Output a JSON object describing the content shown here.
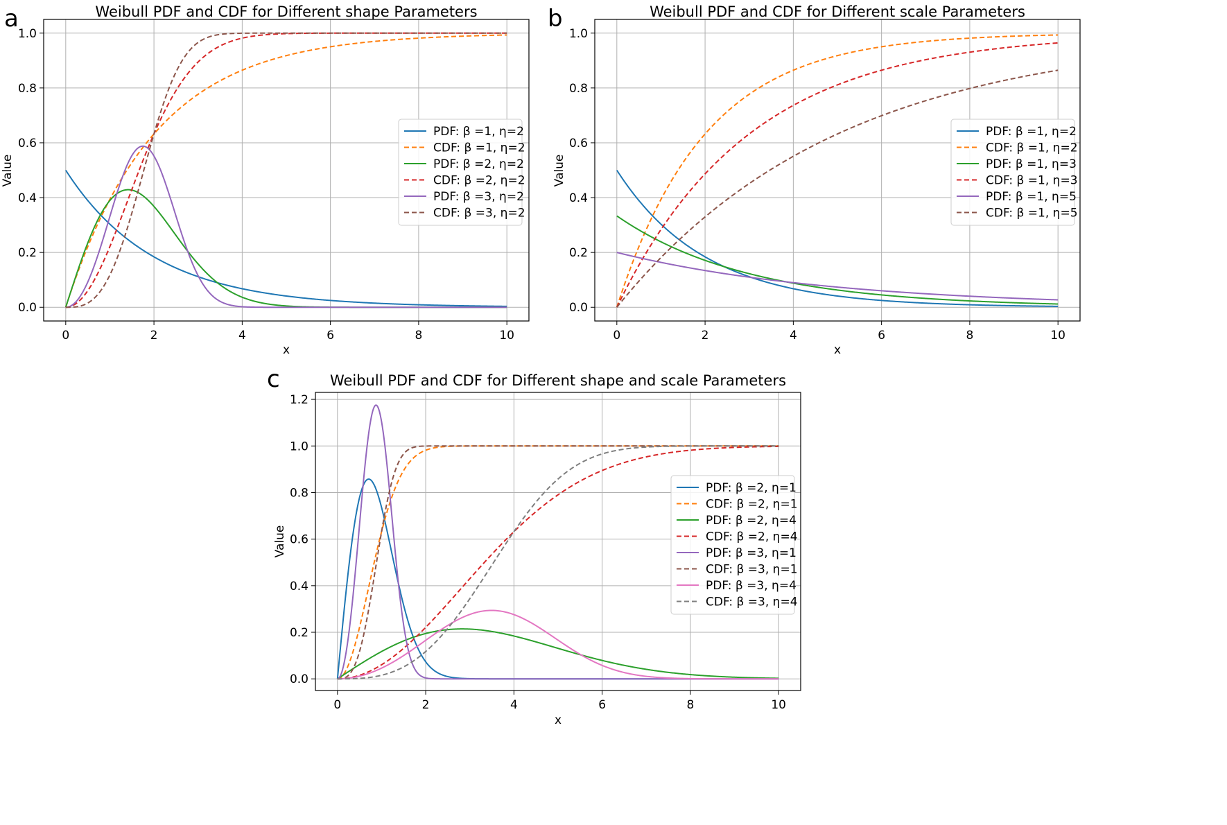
{
  "chart_data": [
    {
      "type": "line",
      "panel": "a",
      "title": "Weibull PDF and CDF for Different shape Parameters",
      "xlabel": "x",
      "ylabel": "Value",
      "xlim": [
        -0.5,
        10.5
      ],
      "ylim": [
        -0.05,
        1.05
      ],
      "xticks": [
        0,
        2,
        4,
        6,
        8,
        10
      ],
      "yticks": [
        0.0,
        0.2,
        0.4,
        0.6,
        0.8,
        1.0
      ],
      "grid": true,
      "legend_placement": "center-right",
      "series": [
        {
          "name": "PDF: β =1, η=2",
          "kind": "pdf",
          "beta": 1,
          "eta": 2,
          "color": "#1f77b4",
          "style": "solid"
        },
        {
          "name": "CDF: β =1, η=2",
          "kind": "cdf",
          "beta": 1,
          "eta": 2,
          "color": "#ff7f0e",
          "style": "dashed"
        },
        {
          "name": "PDF: β =2, η=2",
          "kind": "pdf",
          "beta": 2,
          "eta": 2,
          "color": "#2ca02c",
          "style": "solid"
        },
        {
          "name": "CDF: β =2, η=2",
          "kind": "cdf",
          "beta": 2,
          "eta": 2,
          "color": "#d62728",
          "style": "dashed"
        },
        {
          "name": "PDF: β =3, η=2",
          "kind": "pdf",
          "beta": 3,
          "eta": 2,
          "color": "#9467bd",
          "style": "solid"
        },
        {
          "name": "CDF: β =3, η=2",
          "kind": "cdf",
          "beta": 3,
          "eta": 2,
          "color": "#8c564b",
          "style": "dashed"
        }
      ]
    },
    {
      "type": "line",
      "panel": "b",
      "title": "Weibull PDF and CDF for Different scale Parameters",
      "xlabel": "x",
      "ylabel": "Value",
      "xlim": [
        -0.5,
        10.5
      ],
      "ylim": [
        -0.05,
        1.05
      ],
      "xticks": [
        0,
        2,
        4,
        6,
        8,
        10
      ],
      "yticks": [
        0.0,
        0.2,
        0.4,
        0.6,
        0.8,
        1.0
      ],
      "grid": true,
      "legend_placement": "center-right",
      "series": [
        {
          "name": "PDF: β =1, η=2",
          "kind": "pdf",
          "beta": 1,
          "eta": 2,
          "color": "#1f77b4",
          "style": "solid"
        },
        {
          "name": "CDF: β =1, η=2",
          "kind": "cdf",
          "beta": 1,
          "eta": 2,
          "color": "#ff7f0e",
          "style": "dashed"
        },
        {
          "name": "PDF: β =1, η=3",
          "kind": "pdf",
          "beta": 1,
          "eta": 3,
          "color": "#2ca02c",
          "style": "solid"
        },
        {
          "name": "CDF: β =1, η=3",
          "kind": "cdf",
          "beta": 1,
          "eta": 3,
          "color": "#d62728",
          "style": "dashed"
        },
        {
          "name": "PDF: β =1, η=5",
          "kind": "pdf",
          "beta": 1,
          "eta": 5,
          "color": "#9467bd",
          "style": "solid"
        },
        {
          "name": "CDF: β =1, η=5",
          "kind": "cdf",
          "beta": 1,
          "eta": 5,
          "color": "#8c564b",
          "style": "dashed"
        }
      ]
    },
    {
      "type": "line",
      "panel": "c",
      "title": "Weibull PDF and CDF for Different shape and scale Parameters",
      "xlabel": "x",
      "ylabel": "Value",
      "xlim": [
        -0.5,
        10.5
      ],
      "ylim": [
        -0.05,
        1.23
      ],
      "xticks": [
        0,
        2,
        4,
        6,
        8,
        10
      ],
      "yticks": [
        0.0,
        0.2,
        0.4,
        0.6,
        0.8,
        1.0,
        1.2
      ],
      "grid": true,
      "legend_placement": "center-right",
      "series": [
        {
          "name": "PDF: β =2, η=1",
          "kind": "pdf",
          "beta": 2,
          "eta": 1,
          "color": "#1f77b4",
          "style": "solid"
        },
        {
          "name": "CDF: β =2, η=1",
          "kind": "cdf",
          "beta": 2,
          "eta": 1,
          "color": "#ff7f0e",
          "style": "dashed"
        },
        {
          "name": "PDF: β =2, η=4",
          "kind": "pdf",
          "beta": 2,
          "eta": 4,
          "color": "#2ca02c",
          "style": "solid"
        },
        {
          "name": "CDF: β =2, η=4",
          "kind": "cdf",
          "beta": 2,
          "eta": 4,
          "color": "#d62728",
          "style": "dashed"
        },
        {
          "name": "PDF: β =3, η=1",
          "kind": "pdf",
          "beta": 3,
          "eta": 1,
          "color": "#9467bd",
          "style": "solid"
        },
        {
          "name": "CDF: β =3, η=1",
          "kind": "cdf",
          "beta": 3,
          "eta": 1,
          "color": "#8c564b",
          "style": "dashed"
        },
        {
          "name": "PDF: β =3, η=4",
          "kind": "pdf",
          "beta": 3,
          "eta": 4,
          "color": "#e377c2",
          "style": "solid"
        },
        {
          "name": "CDF: β =3, η=4",
          "kind": "cdf",
          "beta": 3,
          "eta": 4,
          "color": "#7f7f7f",
          "style": "dashed"
        }
      ]
    }
  ]
}
